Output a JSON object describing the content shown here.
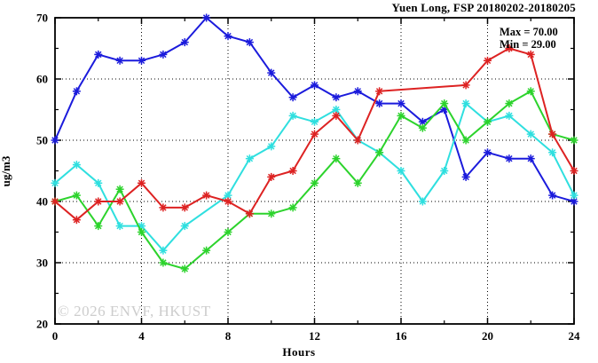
{
  "header": {
    "title": "Yuen Long, FSP 20180202-20180205",
    "max_label": "Max = 70.00",
    "min_label": "Min = 29.00"
  },
  "watermark": "© 2026 ENVF, HKUST",
  "chart_data": {
    "type": "line",
    "title": "Yuen Long, FSP 20180202-20180205",
    "xlabel": "Hours",
    "ylabel": "ug/m3",
    "xlim": [
      0,
      24
    ],
    "ylim": [
      20,
      70
    ],
    "x_major_ticks": [
      0,
      4,
      8,
      12,
      16,
      20,
      24
    ],
    "x_minor_ticks": [
      2,
      6,
      10,
      14,
      18,
      22
    ],
    "y_major_ticks": [
      20,
      30,
      40,
      50,
      60,
      70
    ],
    "y_minor_ticks": [
      25,
      35,
      45,
      55,
      65
    ],
    "grid": {
      "x_lines": [
        4,
        8,
        12,
        16,
        20
      ],
      "y_lines": [
        30,
        40,
        50,
        60
      ],
      "style": "dotted"
    },
    "legend_position": "none",
    "marker": "asterisk",
    "annotations": {
      "max": 70.0,
      "min": 29.0
    },
    "x": [
      0,
      1,
      2,
      3,
      4,
      5,
      6,
      7,
      8,
      9,
      10,
      11,
      12,
      13,
      14,
      15,
      16,
      17,
      18,
      19,
      20,
      21,
      22,
      23,
      24
    ],
    "series": [
      {
        "name": "blue",
        "color": "#1b1bdc",
        "values": [
          50,
          58,
          64,
          63,
          63,
          64,
          66,
          70,
          67,
          66,
          61,
          57,
          59,
          57,
          58,
          56,
          56,
          53,
          55,
          44,
          48,
          47,
          47,
          41,
          40
        ]
      },
      {
        "name": "cyan",
        "color": "#2fdfdf",
        "values": [
          43,
          46,
          43,
          36,
          36,
          32,
          36,
          null,
          41,
          47,
          49,
          54,
          53,
          55,
          50,
          48,
          45,
          40,
          45,
          56,
          53,
          54,
          51,
          48,
          41
        ]
      },
      {
        "name": "green",
        "color": "#2cd32c",
        "values": [
          40,
          41,
          36,
          42,
          35,
          30,
          29,
          32,
          35,
          38,
          38,
          39,
          43,
          47,
          43,
          48,
          54,
          52,
          56,
          50,
          53,
          56,
          58,
          51,
          50
        ]
      },
      {
        "name": "red",
        "color": "#dd2222",
        "values": [
          40,
          37,
          40,
          40,
          43,
          39,
          39,
          41,
          40,
          38,
          44,
          45,
          51,
          54,
          50,
          58,
          null,
          null,
          null,
          59,
          63,
          65,
          64,
          51,
          45
        ]
      }
    ]
  }
}
